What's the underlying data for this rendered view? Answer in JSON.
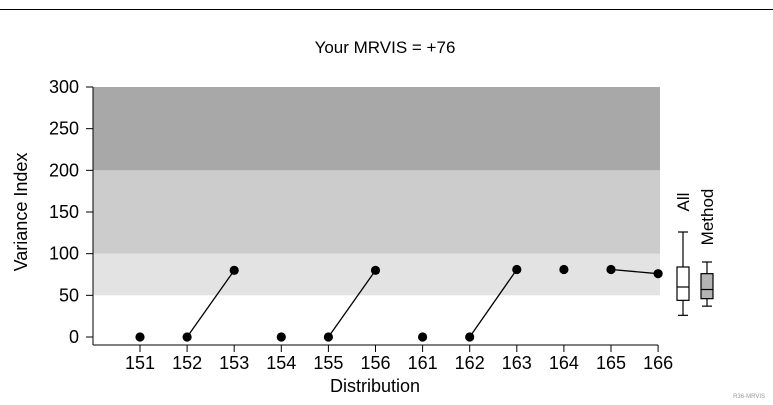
{
  "chart_data": {
    "type": "scatter",
    "title": "Your MRVIS = +76",
    "xlabel": "Distribution",
    "ylabel": "Variance Index",
    "ylim": [
      0,
      300
    ],
    "yticks": [
      0,
      50,
      100,
      150,
      200,
      250,
      300
    ],
    "categories": [
      "151",
      "152",
      "153",
      "154",
      "155",
      "156",
      "161",
      "162",
      "163",
      "164",
      "165",
      "166"
    ],
    "values": [
      0,
      0,
      80,
      0,
      0,
      80,
      0,
      0,
      81,
      81,
      81,
      76
    ],
    "connected_segments": [
      [
        1,
        2
      ],
      [
        4,
        5
      ],
      [
        7,
        8
      ],
      [
        10,
        11
      ]
    ],
    "bands": [
      {
        "from": 50,
        "to": 100,
        "color": "#e3e3e3"
      },
      {
        "from": 100,
        "to": 200,
        "color": "#cccccc"
      },
      {
        "from": 200,
        "to": 300,
        "color": "#a8a8a8"
      }
    ],
    "boxplots": [
      {
        "label": "All",
        "min": 26,
        "q1": 44,
        "median": 60,
        "q3": 84,
        "max": 126,
        "fill": "#ffffff"
      },
      {
        "label": "Method",
        "min": 37,
        "q1": 46,
        "median": 57,
        "q3": 76,
        "max": 90,
        "fill": "#b4b4b4"
      }
    ],
    "footnote": "R36-MRVIS"
  }
}
